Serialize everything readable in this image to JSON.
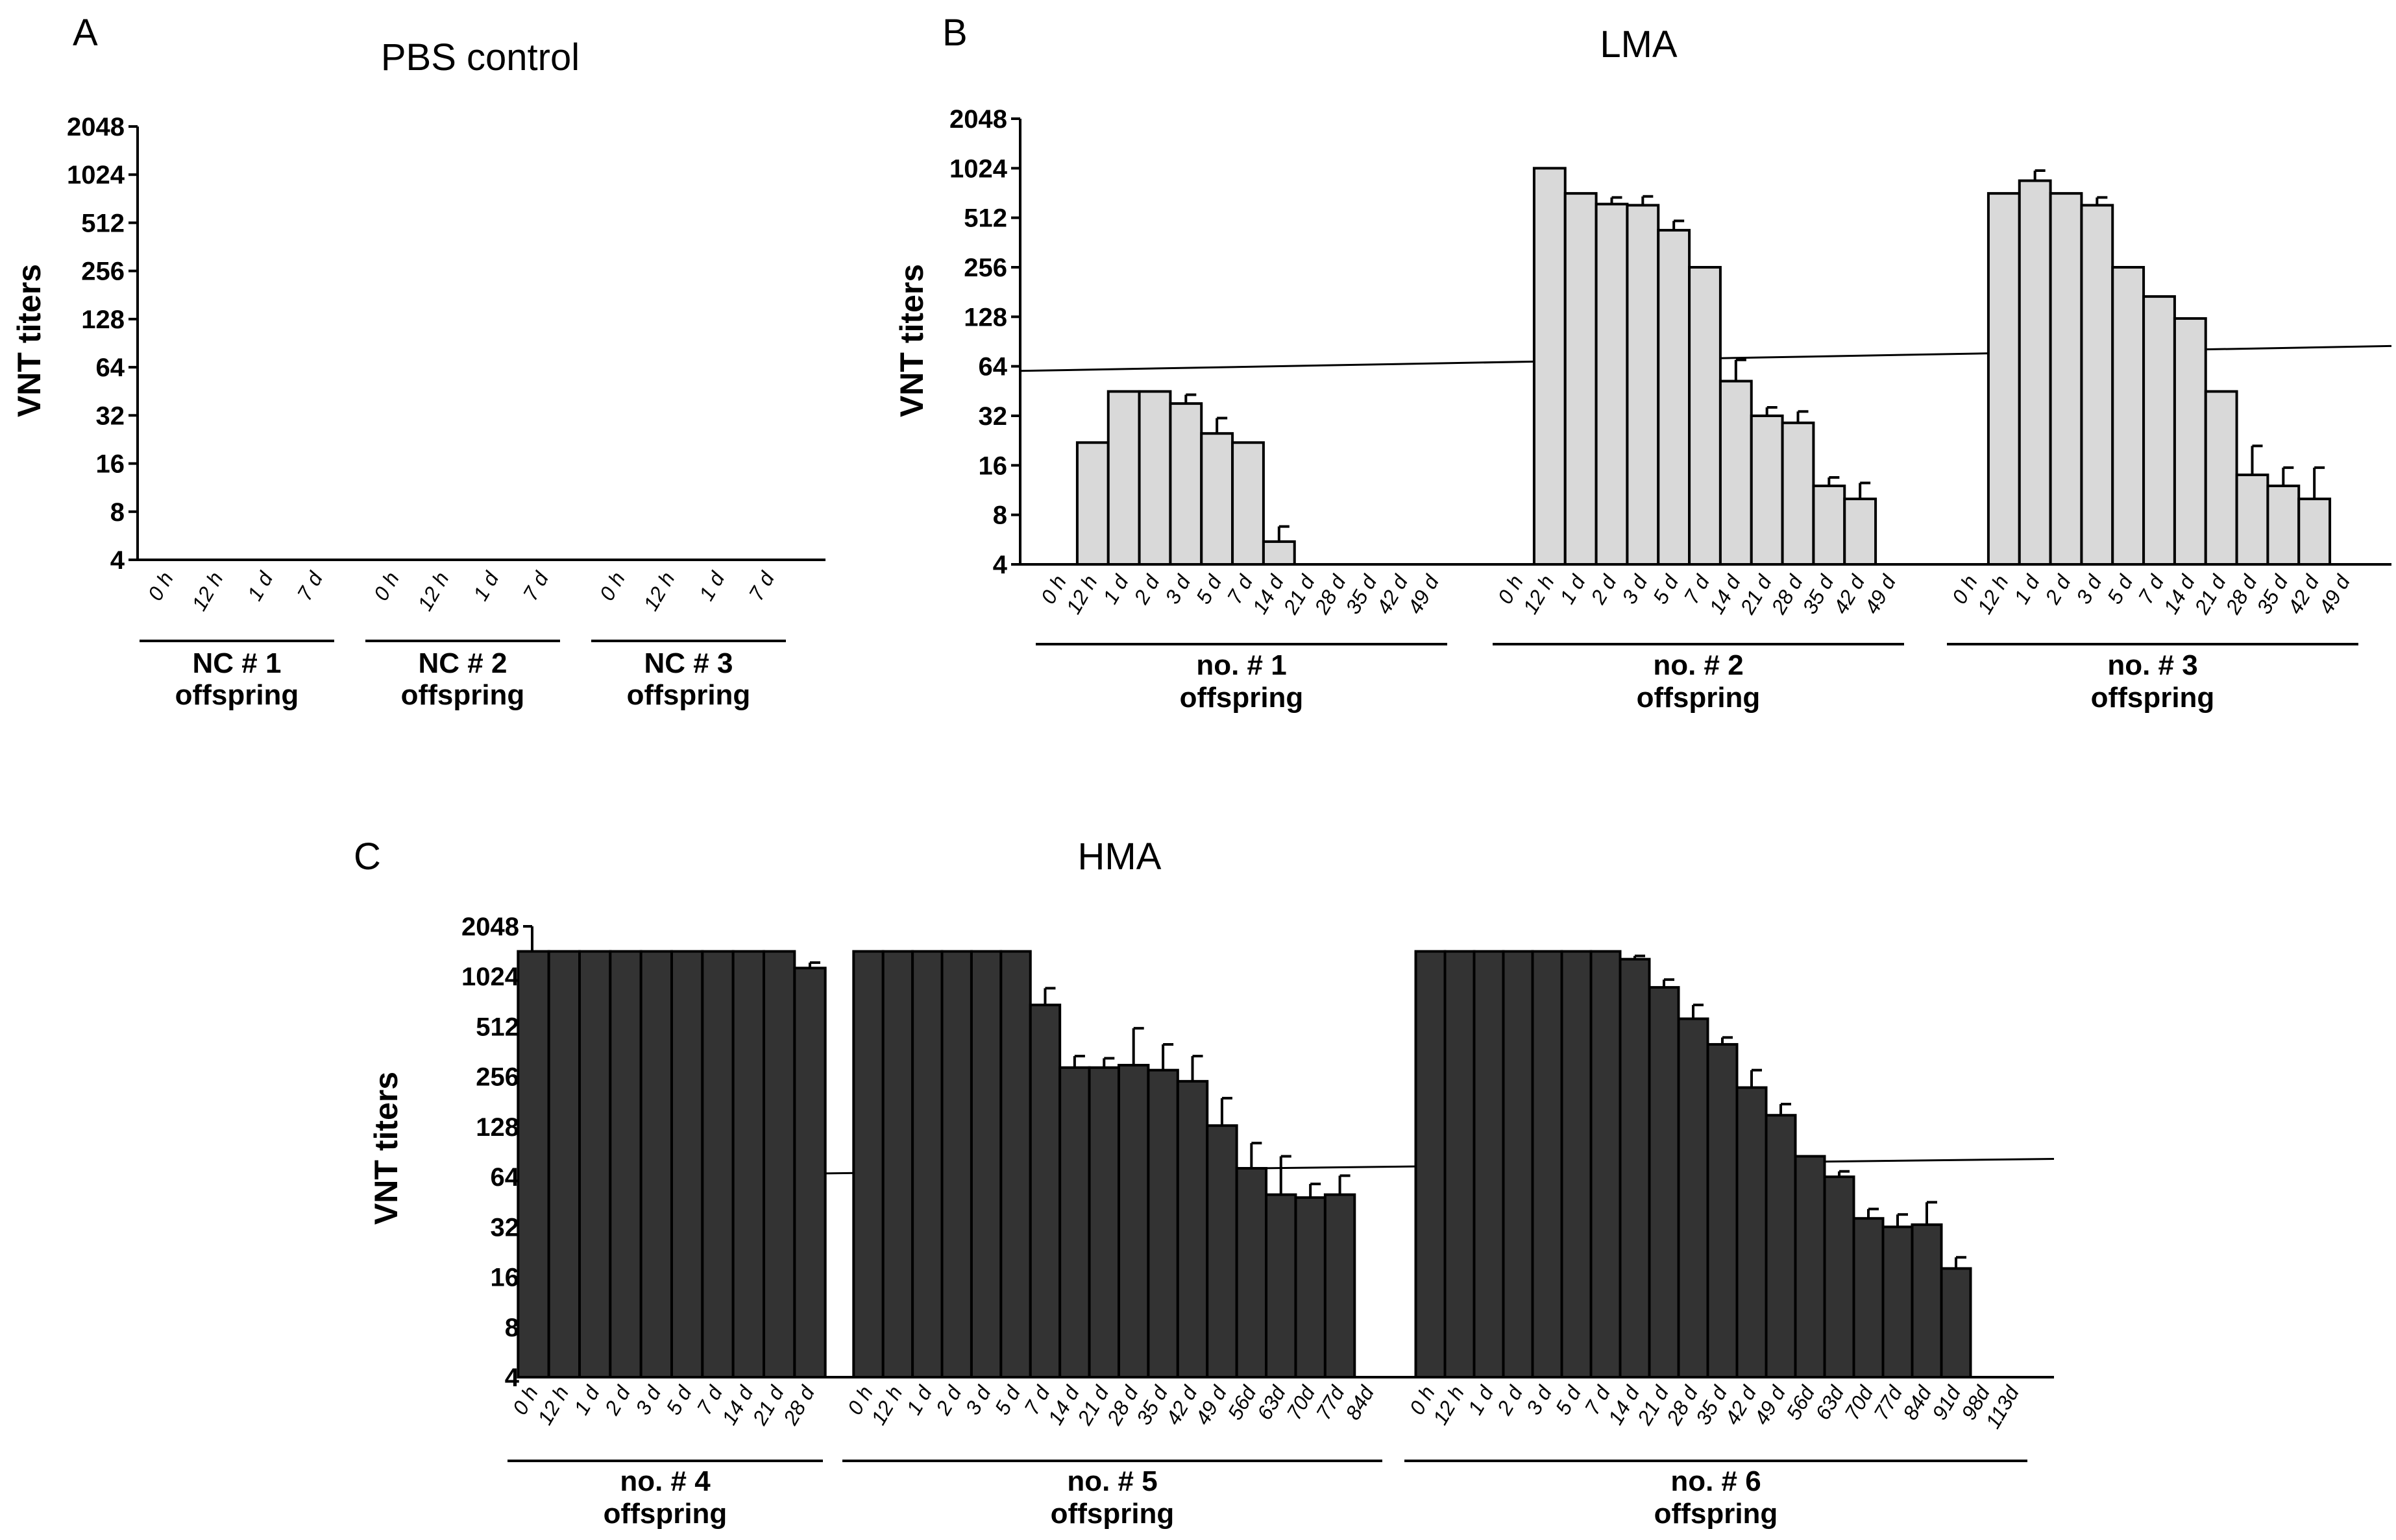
{
  "chart_data": [
    {
      "panel": "A",
      "type": "bar",
      "title": "PBS control",
      "ylabel": "VNT titers",
      "yscale": "log2",
      "ylim": [
        4,
        2048
      ],
      "yticks": [
        "2048",
        "1024",
        "512",
        "256",
        "128",
        "64",
        "32",
        "16",
        "8",
        "4"
      ],
      "groups": [
        {
          "name": "NC # 1",
          "sub": "offspring",
          "categories": [
            "0 h",
            "12 h",
            "1 d",
            "7 d"
          ],
          "values": [
            null,
            null,
            null,
            null
          ],
          "errors": [
            0,
            0,
            0,
            0
          ]
        },
        {
          "name": "NC # 2",
          "sub": "offspring",
          "categories": [
            "0 h",
            "12 h",
            "1 d",
            "7 d"
          ],
          "values": [
            null,
            null,
            null,
            null
          ],
          "errors": [
            0,
            0,
            0,
            0
          ]
        },
        {
          "name": "NC # 3",
          "sub": "offspring",
          "categories": [
            "0 h",
            "12 h",
            "1 d",
            "7 d"
          ],
          "values": [
            null,
            null,
            null,
            null
          ],
          "errors": [
            0,
            0,
            0,
            0
          ]
        }
      ],
      "bar_color": "#d9d9d9"
    },
    {
      "panel": "B",
      "type": "bar",
      "title": "LMA",
      "ylabel": "VNT titers",
      "yscale": "log2",
      "ylim": [
        4,
        2048
      ],
      "yticks": [
        "2048",
        "1024",
        "512",
        "256",
        "128",
        "64",
        "32",
        "16",
        "8",
        "4"
      ],
      "threshold_line": [
        60,
        85
      ],
      "groups": [
        {
          "name": "no. # 1",
          "sub": "offspring",
          "categories": [
            "0 h",
            "12 h",
            "1 d",
            "2 d",
            "3 d",
            "5 d",
            "7 d",
            "14 d",
            "21 d",
            "28 d",
            "35 d",
            "42 d",
            "49 d"
          ],
          "values": [
            null,
            22,
            45,
            45,
            38,
            25,
            22,
            5.5,
            null,
            null,
            null,
            null,
            null
          ],
          "errors": [
            0,
            0,
            0,
            0,
            5,
            6,
            0,
            1.3,
            0,
            0,
            0,
            0,
            0
          ]
        },
        {
          "name": "no. # 2",
          "sub": "offspring",
          "categories": [
            "0 h",
            "12 h",
            "1 d",
            "2 d",
            "3 d",
            "5 d",
            "7 d",
            "14 d",
            "21 d",
            "28 d",
            "35 d",
            "42 d",
            "49 d"
          ],
          "values": [
            null,
            1024,
            720,
            620,
            610,
            430,
            256,
            52,
            32,
            29,
            12,
            10,
            null
          ],
          "errors": [
            0,
            0,
            0,
            60,
            80,
            60,
            0,
            18,
            4,
            5,
            1.5,
            2.5,
            0
          ]
        },
        {
          "name": "no. # 3",
          "sub": "offspring",
          "categories": [
            "0 h",
            "12 h",
            "1 d",
            "2 d",
            "3 d",
            "5 d",
            "7 d",
            "14 d",
            "21 d",
            "28 d",
            "35 d",
            "42 d",
            "49 d"
          ],
          "values": [
            null,
            720,
            860,
            720,
            610,
            256,
            170,
            125,
            45,
            14,
            12,
            10,
            null
          ],
          "errors": [
            0,
            0,
            130,
            0,
            70,
            0,
            0,
            0,
            0,
            7,
            3.5,
            5.5,
            0
          ]
        }
      ],
      "bar_color": "#d9d9d9"
    },
    {
      "panel": "C",
      "type": "bar",
      "title": "HMA",
      "ylabel": "VNT titers",
      "yscale": "log2",
      "ylim": [
        4,
        2048
      ],
      "yticks": [
        "2048",
        "1024",
        "512",
        "256",
        "128",
        "64",
        "32",
        "16",
        "8",
        "4"
      ],
      "threshold_line": [
        64,
        82
      ],
      "groups": [
        {
          "name": "no. # 4",
          "sub": "offspring",
          "categories": [
            "0 h",
            "12 h",
            "1 d",
            "2 d",
            "3 d",
            "5 d",
            "7 d",
            "14 d",
            "21 d",
            "28 d"
          ],
          "values": [
            1448,
            1448,
            1448,
            1448,
            1448,
            1448,
            1448,
            1448,
            1448,
            1150
          ],
          "errors": [
            0,
            0,
            0,
            0,
            0,
            0,
            0,
            0,
            0,
            90
          ]
        },
        {
          "name": "no. # 5",
          "sub": "offspring",
          "categories": [
            "0 h",
            "12 h",
            "1 d",
            "2 d",
            "3 d",
            "5 d",
            "7 d",
            "14 d",
            "21 d",
            "28 d",
            "35 d",
            "42 d",
            "49 d",
            "56d",
            "63d",
            "70d",
            "77d",
            "84d"
          ],
          "values": [
            1448,
            1448,
            1448,
            1448,
            1448,
            1448,
            690,
            290,
            290,
            300,
            280,
            240,
            130,
            72,
            50,
            48,
            50,
            null
          ],
          "errors": [
            0,
            0,
            0,
            0,
            0,
            0,
            180,
            50,
            40,
            200,
            120,
            100,
            60,
            30,
            35,
            10,
            15,
            0
          ]
        },
        {
          "name": "no. # 6",
          "sub": "offspring",
          "categories": [
            "0 h",
            "12 h",
            "1 d",
            "2 d",
            "3 d",
            "5 d",
            "7 d",
            "14 d",
            "21 d",
            "28 d",
            "35 d",
            "42 d",
            "49 d",
            "56d",
            "63d",
            "70d",
            "77d",
            "84d",
            "91d",
            "98d",
            "113d"
          ],
          "values": [
            1448,
            1448,
            1448,
            1448,
            1448,
            1448,
            1448,
            1300,
            880,
            570,
            400,
            220,
            150,
            85,
            64,
            36,
            32,
            33,
            18,
            null,
            null
          ],
          "errors": [
            0,
            0,
            0,
            0,
            0,
            0,
            0,
            60,
            100,
            120,
            40,
            60,
            25,
            0,
            5,
            5,
            6,
            12,
            3,
            0,
            0
          ]
        }
      ],
      "bar_color": "#333333"
    }
  ]
}
